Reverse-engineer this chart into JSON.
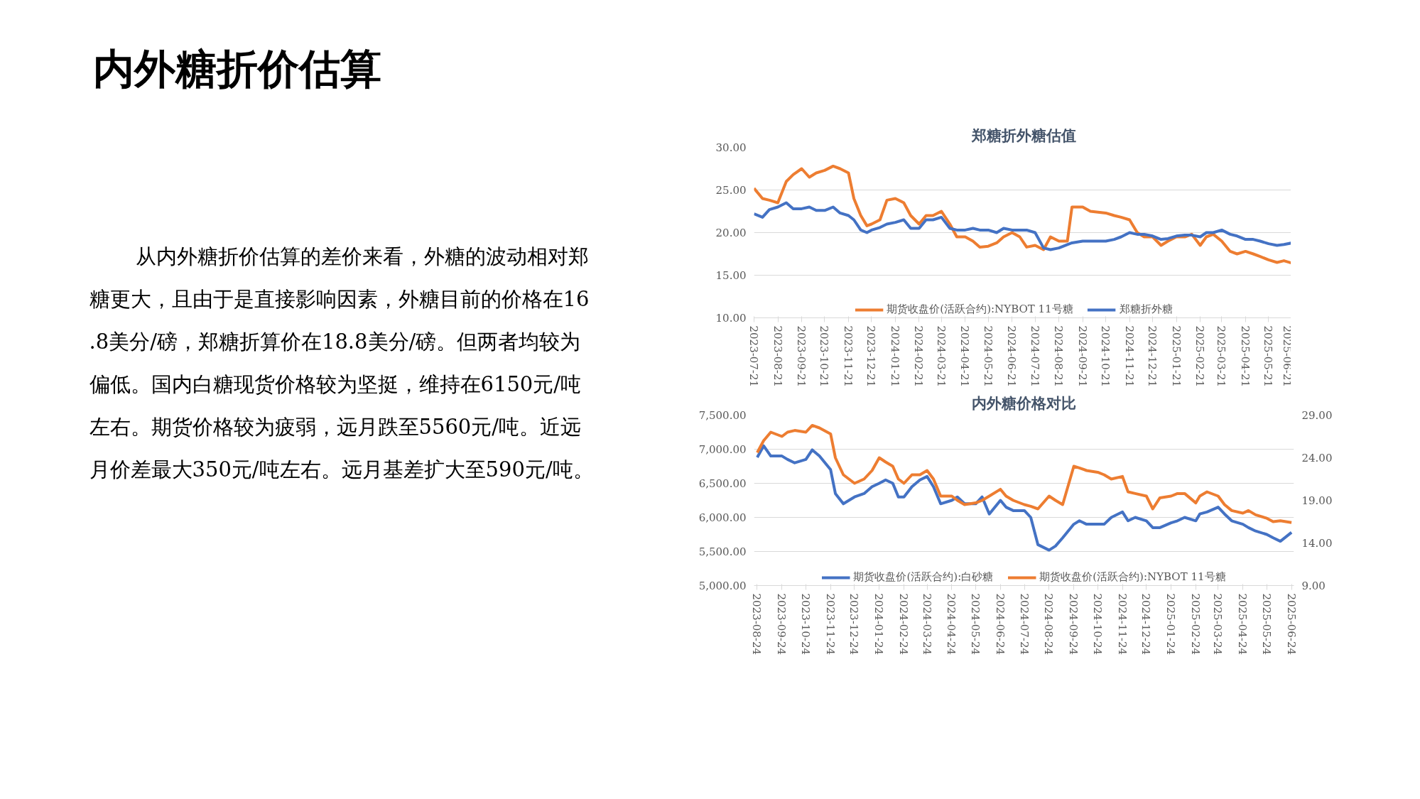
{
  "chart_data": [
    {
      "type": "other",
      "title": "内外糖折价估算",
      "annotations": [
        "从内外糖折价估算的差价来看，外糖的波动相对郑糖更大，且由于是直接影响因素，外糖目前的价格在16.8美分/磅，郑糖折算价在18.8美分/磅。但两者均较为偏低。国内白糖现货价格较为坚挺，维持在6150元/吨左右。期货价格较为疲弱，远月跌至5560元/吨。近远月价差最大350元/吨左右。远月基差扩大至590元/吨。"
      ]
    },
    {
      "type": "line",
      "title": "郑糖折外糖估值",
      "grid": "y",
      "legend": "bottom",
      "marker": "none",
      "line_style": "solid",
      "x": [
        "2023-07-21",
        "2023-08-01",
        "2023-08-10",
        "2023-08-21",
        "2023-09-01",
        "2023-09-10",
        "2023-09-21",
        "2023-10-01",
        "2023-10-10",
        "2023-10-21",
        "2023-11-01",
        "2023-11-10",
        "2023-11-21",
        "2023-11-28",
        "2023-12-07",
        "2023-12-15",
        "2023-12-21",
        "2024-01-01",
        "2024-01-10",
        "2024-01-21",
        "2024-02-01",
        "2024-02-10",
        "2024-02-21",
        "2024-03-01",
        "2024-03-10",
        "2024-03-21",
        "2024-04-01",
        "2024-04-10",
        "2024-04-21",
        "2024-05-01",
        "2024-05-10",
        "2024-05-21",
        "2024-06-01",
        "2024-06-10",
        "2024-06-21",
        "2024-07-01",
        "2024-07-10",
        "2024-07-21",
        "2024-08-01",
        "2024-08-10",
        "2024-08-21",
        "2024-09-01",
        "2024-09-07",
        "2024-09-21",
        "2024-10-01",
        "2024-10-21",
        "2024-11-01",
        "2024-11-10",
        "2024-11-21",
        "2024-12-01",
        "2024-12-10",
        "2024-12-21",
        "2025-01-01",
        "2025-01-10",
        "2025-01-21",
        "2025-02-01",
        "2025-02-10",
        "2025-02-21",
        "2025-03-01",
        "2025-03-10",
        "2025-03-21",
        "2025-04-01",
        "2025-04-10",
        "2025-04-21",
        "2025-05-01",
        "2025-05-10",
        "2025-05-21",
        "2025-06-01",
        "2025-06-10",
        "2025-06-21"
      ],
      "xlim": [
        "2023-07-21",
        "2025-06-23"
      ],
      "xticks": [
        "2023-07-21",
        "2023-08-21",
        "2023-09-21",
        "2023-10-21",
        "2023-11-21",
        "2023-12-21",
        "2024-01-21",
        "2024-02-21",
        "2024-03-21",
        "2024-04-21",
        "2024-05-21",
        "2024-06-21",
        "2024-07-21",
        "2024-08-21",
        "2024-09-21",
        "2024-10-21",
        "2024-11-21",
        "2024-12-21",
        "2025-01-21",
        "2025-02-21",
        "2025-03-21",
        "2025-04-21",
        "2025-05-21",
        "2025-06-21"
      ],
      "ylim": [
        10,
        30
      ],
      "yticks": [
        {
          "value": 10,
          "label": "10.00"
        },
        {
          "value": 15,
          "label": "15.00"
        },
        {
          "value": 20,
          "label": "20.00"
        },
        {
          "value": 25,
          "label": "25.00"
        },
        {
          "value": 30,
          "label": "30.00"
        }
      ],
      "series": [
        {
          "name": "期货收盘价(活跃合约):NYBOT 11号糖",
          "color": "#ed7d31",
          "values": [
            25.2,
            24.0,
            23.8,
            23.5,
            26.0,
            26.8,
            27.5,
            26.5,
            27.0,
            27.3,
            27.8,
            27.5,
            27.0,
            24.0,
            22.0,
            20.8,
            21.0,
            21.5,
            23.8,
            24.0,
            23.5,
            22.0,
            21.0,
            22.0,
            22.0,
            22.5,
            21.0,
            19.5,
            19.5,
            19.0,
            18.3,
            18.4,
            18.8,
            19.5,
            20.0,
            19.5,
            18.3,
            18.5,
            18.0,
            19.5,
            19.0,
            19.0,
            23.0,
            23.0,
            22.5,
            22.3,
            22.0,
            21.8,
            21.5,
            20.0,
            19.5,
            19.5,
            18.5,
            19.0,
            19.5,
            19.5,
            19.8,
            18.5,
            19.5,
            19.8,
            19.0,
            17.8,
            17.5,
            17.8,
            17.5,
            17.2,
            16.8,
            16.5,
            16.7,
            16.4
          ]
        },
        {
          "name": "郑糖折外糖",
          "color": "#4472c4",
          "values": [
            22.2,
            21.8,
            22.7,
            23.0,
            23.5,
            22.8,
            22.8,
            23.0,
            22.6,
            22.6,
            23.0,
            22.3,
            22.0,
            21.5,
            20.3,
            20.0,
            20.3,
            20.6,
            21.0,
            21.2,
            21.5,
            20.5,
            20.5,
            21.5,
            21.5,
            21.8,
            20.5,
            20.3,
            20.3,
            20.5,
            20.3,
            20.3,
            20.0,
            20.5,
            20.3,
            20.3,
            20.3,
            20.0,
            18.2,
            18.0,
            18.2,
            18.6,
            18.8,
            19.0,
            19.0,
            19.0,
            19.2,
            19.5,
            20.0,
            19.8,
            19.8,
            19.6,
            19.2,
            19.3,
            19.6,
            19.7,
            19.7,
            19.5,
            20.0,
            20.0,
            20.3,
            19.8,
            19.6,
            19.2,
            19.2,
            19.0,
            18.7,
            18.5,
            18.6,
            18.8
          ]
        }
      ]
    },
    {
      "type": "line",
      "title": "内外糖价格对比",
      "grid": "y",
      "legend": "bottom",
      "marker": "none",
      "line_style": "solid",
      "x": [
        "2023-08-24",
        "2023-09-01",
        "2023-09-10",
        "2023-09-24",
        "2023-10-01",
        "2023-10-10",
        "2023-10-24",
        "2023-11-01",
        "2023-11-10",
        "2023-11-24",
        "2023-11-30",
        "2023-12-10",
        "2023-12-24",
        "2024-01-05",
        "2024-01-15",
        "2024-01-24",
        "2024-02-01",
        "2024-02-10",
        "2024-02-17",
        "2024-02-24",
        "2024-03-05",
        "2024-03-15",
        "2024-03-24",
        "2024-04-01",
        "2024-04-10",
        "2024-04-24",
        "2024-05-01",
        "2024-05-10",
        "2024-05-24",
        "2024-06-01",
        "2024-06-10",
        "2024-06-24",
        "2024-07-01",
        "2024-07-10",
        "2024-07-24",
        "2024-08-01",
        "2024-08-10",
        "2024-08-24",
        "2024-09-01",
        "2024-09-10",
        "2024-09-24",
        "2024-10-01",
        "2024-10-10",
        "2024-10-24",
        "2024-11-01",
        "2024-11-10",
        "2024-11-24",
        "2024-12-01",
        "2024-12-10",
        "2024-12-24",
        "2025-01-01",
        "2025-01-10",
        "2025-01-24",
        "2025-02-01",
        "2025-02-10",
        "2025-02-24",
        "2025-03-01",
        "2025-03-10",
        "2025-03-24",
        "2025-04-01",
        "2025-04-10",
        "2025-04-24",
        "2025-05-01",
        "2025-05-10",
        "2025-05-24",
        "2025-06-01",
        "2025-06-10",
        "2025-06-24"
      ],
      "xlim": [
        "2023-08-20",
        "2025-06-27"
      ],
      "xticks": [
        "2023-08-24",
        "2023-09-24",
        "2023-10-24",
        "2023-11-24",
        "2023-12-24",
        "2024-01-24",
        "2024-02-24",
        "2024-03-24",
        "2024-04-24",
        "2024-05-24",
        "2024-06-24",
        "2024-07-24",
        "2024-08-24",
        "2024-09-24",
        "2024-10-24",
        "2024-11-24",
        "2024-12-24",
        "2025-01-24",
        "2025-02-24",
        "2025-03-24",
        "2025-04-24",
        "2025-05-24",
        "2025-06-24"
      ],
      "ylim": [
        5000,
        7500
      ],
      "yticks": [
        {
          "value": 5000,
          "label": "5,000.00"
        },
        {
          "value": 5500,
          "label": "5,500.00"
        },
        {
          "value": 6000,
          "label": "6,000.00"
        },
        {
          "value": 6500,
          "label": "6,500.00"
        },
        {
          "value": 7000,
          "label": "7,000.00"
        },
        {
          "value": 7500,
          "label": "7,500.00"
        }
      ],
      "y2lim": [
        9,
        29
      ],
      "y2ticks": [
        {
          "value": 9,
          "label": "9.00"
        },
        {
          "value": 14,
          "label": "14.00"
        },
        {
          "value": 19,
          "label": "19.00"
        },
        {
          "value": 24,
          "label": "24.00"
        },
        {
          "value": 29,
          "label": "29.00"
        }
      ],
      "series": [
        {
          "name": "期货收盘价(活跃合约):白砂糖",
          "color": "#4472c4",
          "values": [
            6880,
            7050,
            6900,
            6900,
            6850,
            6800,
            6850,
            6990,
            6900,
            6700,
            6350,
            6200,
            6300,
            6350,
            6450,
            6500,
            6550,
            6500,
            6300,
            6300,
            6450,
            6550,
            6600,
            6450,
            6200,
            6250,
            6300,
            6200,
            6200,
            6300,
            6050,
            6250,
            6150,
            6100,
            6100,
            6000,
            5600,
            5520,
            5580,
            5700,
            5900,
            5950,
            5900,
            5900,
            5900,
            6000,
            6080,
            5950,
            6000,
            5950,
            5850,
            5850,
            5920,
            5950,
            6000,
            5950,
            6050,
            6080,
            6150,
            6050,
            5950,
            5900,
            5850,
            5800,
            5750,
            5700,
            5650,
            5780
          ]
        },
        {
          "name": "期货收盘价(活跃合约):NYBOT 11号糖",
          "color": "#ed7d31",
          "axis": "y2",
          "values": [
            24.6,
            26.0,
            27.0,
            26.5,
            27.0,
            27.2,
            27.0,
            27.8,
            27.5,
            26.8,
            24.0,
            22.0,
            21.0,
            21.5,
            22.5,
            24.0,
            23.5,
            23.0,
            21.5,
            21.0,
            22.0,
            22.0,
            22.5,
            21.5,
            19.5,
            19.5,
            19.0,
            18.5,
            18.7,
            19.0,
            19.5,
            20.3,
            19.5,
            19.0,
            18.5,
            18.3,
            18.0,
            19.5,
            19.0,
            18.5,
            23.0,
            22.8,
            22.5,
            22.3,
            22.0,
            21.5,
            21.8,
            20.0,
            19.8,
            19.5,
            18.0,
            19.3,
            19.5,
            19.8,
            19.8,
            18.7,
            19.5,
            20.0,
            19.5,
            18.5,
            17.8,
            17.5,
            17.8,
            17.3,
            16.9,
            16.5,
            16.6,
            16.4
          ]
        }
      ]
    }
  ]
}
